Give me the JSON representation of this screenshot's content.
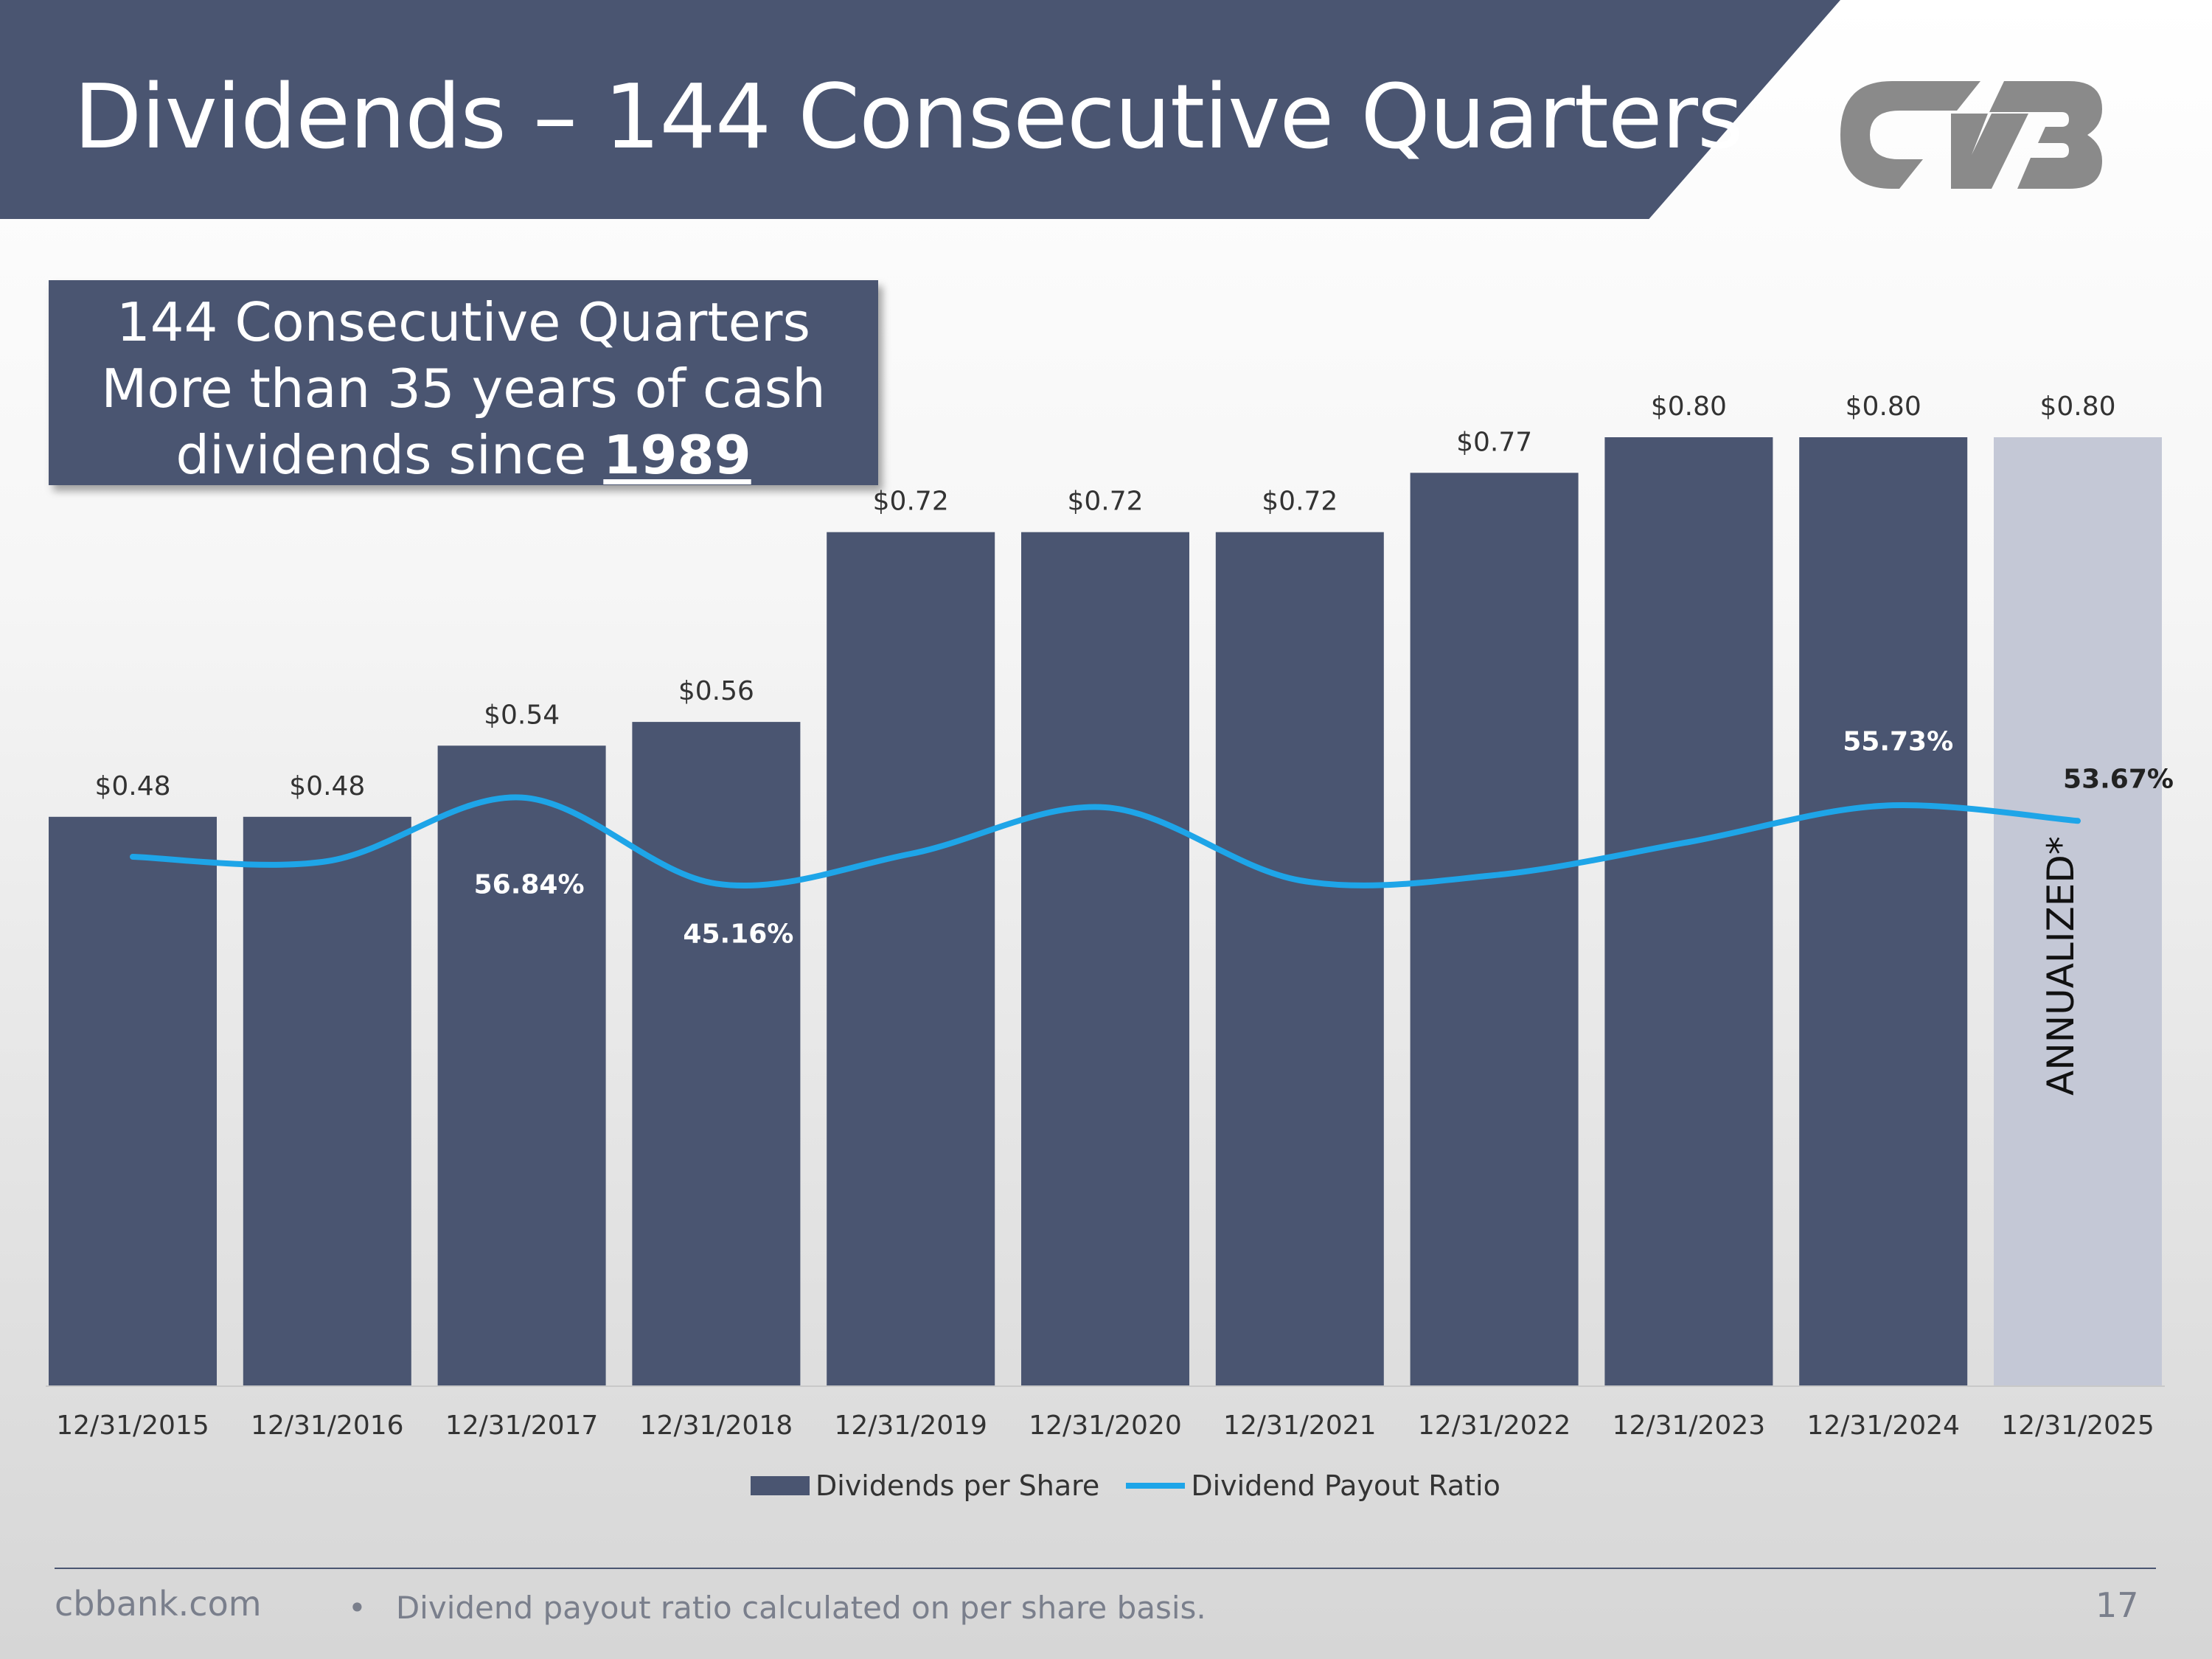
{
  "slide": {
    "title": "Dividends – 144 Consecutive Quarters",
    "logo_name": "CVB logo",
    "callout": {
      "line1": "144 Consecutive Quarters",
      "line2": "More than 35 years of cash",
      "line3_prefix": "dividends since ",
      "line3_year": "1989"
    },
    "footer": {
      "site": "cbbank.com",
      "bullet": "•",
      "note": "Dividend payout ratio calculated on per share basis.",
      "page_number": "17"
    }
  },
  "colors": {
    "bar": "#4a5571",
    "bar_annualized": "#c4c8d6",
    "line": "#1ea5e8",
    "title_band": "#4a5571",
    "logo": "#8a8a8a"
  },
  "chart_data": {
    "type": "bar",
    "categories": [
      "12/31/2015",
      "12/31/2016",
      "12/31/2017",
      "12/31/2018",
      "12/31/2019",
      "12/31/2020",
      "12/31/2021",
      "12/31/2022",
      "12/31/2023",
      "12/31/2024",
      "12/31/2025"
    ],
    "series": [
      {
        "name": "Dividends per Share",
        "type": "bar",
        "values": [
          0.48,
          0.48,
          0.54,
          0.56,
          0.72,
          0.72,
          0.72,
          0.77,
          0.8,
          0.8,
          0.8
        ],
        "labels": [
          "$0.48",
          "$0.48",
          "$0.54",
          "$0.56",
          "$0.72",
          "$0.72",
          "$0.72",
          "$0.77",
          "$0.80",
          "$0.80",
          "$0.80"
        ]
      },
      {
        "name": "Dividend Payout Ratio",
        "type": "line",
        "values": [
          48.8,
          48.2,
          56.84,
          45.16,
          49.2,
          55.5,
          45.6,
          46.3,
          50.8,
          55.73,
          53.67
        ],
        "labels": [
          "",
          "",
          "56.84%",
          "45.16%",
          "",
          "",
          "",
          "",
          "",
          "55.73%",
          "53.67%"
        ]
      }
    ],
    "annualized_index": 10,
    "annotation": "ANNUALIZED*",
    "legend": [
      "Dividends per Share",
      "Dividend Payout Ratio"
    ],
    "ylim_bars": [
      0,
      0.8
    ],
    "ylim_ratio_display": [
      40,
      60
    ]
  }
}
